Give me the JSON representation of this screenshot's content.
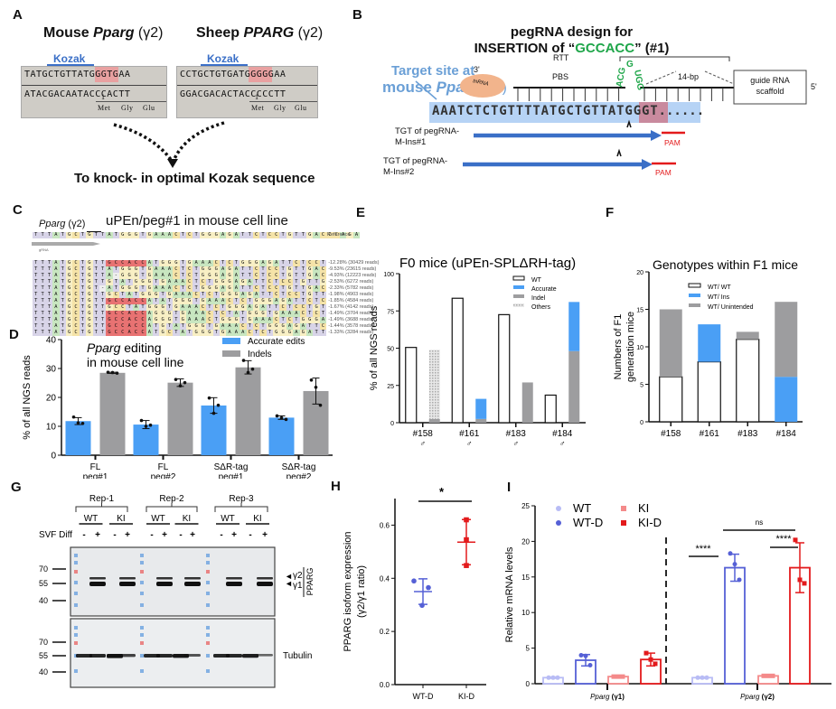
{
  "panels": {
    "A": {
      "label": "A",
      "mouse_title": "Mouse ",
      "mouse_gene": "Pparg",
      "mouse_iso": " (γ2)",
      "sheep_title": "Sheep  ",
      "sheep_gene": "PPARG",
      "sheep_iso": " (γ2)",
      "kozak": "Kozak",
      "mouse_top_pre": "TATGCTGTT",
      "mouse_top_atg": "ATG",
      "mouse_top_post": "GGTGAA",
      "mouse_bottom": "ATACGACAATACCCACTT",
      "sheep_top_pre": "CCTGCTGTG",
      "sheep_top_atg": "ATG",
      "sheep_top_post": "GGGGAA",
      "sheep_bottom": "GGACGACACTACCCCCTT",
      "aa_num": "1",
      "aa": [
        "Met",
        "Gly",
        "Glu"
      ],
      "caption": "To knock- in optimal Kozak sequence"
    },
    "B": {
      "label": "B",
      "title_line1": "pegRNA design for",
      "title_line2_pre": "INSERTION of “",
      "title_insert": "GCCACC",
      "title_line2_post": "” (#1)",
      "target_line1": "Target site at",
      "target_line2_pre": "mouse ",
      "target_gene": "Pparg",
      "target_iso": " (γ2)",
      "three_prime": "3'",
      "five_prime": "5'",
      "trna": "tnRNA",
      "pbs": "PBS",
      "rtt": "RTT",
      "insert_loop": "ACGGUGG",
      "bp": "14-bp",
      "scaffold_line1": "guide RNA",
      "scaffold_line2": "scaffold",
      "seq_pre": "AAATCTCTGTTTTATGCTGTT",
      "seq_atg": "ATG",
      "seq_post": "GGT",
      "seq_dots": "......",
      "tgt1_line1": "TGT of pegRNA-",
      "tgt1_line2": "M-Ins#1",
      "tgt2_line1": "TGT of pegRNA-",
      "tgt2_line2": "M-Ins#2",
      "pam": "PAM"
    },
    "C": {
      "label": "C",
      "gene": "Pparg",
      "iso": " (γ2)",
      "title": "uPEn/peg#1 in mouse cell line",
      "grna": "gRNA",
      "reference_label": "Reference",
      "reference": "TTTATGCTGTTATGGGTGAAACTCTGGGAGATTCTCCTGTTGACCCAGA",
      "rows": [
        {
          "seq": "TTTATGCTGTTGCCACCATGGGTGAAACTCTGGGAGATTCTCCTGTTGAC",
          "pct": "12.28%",
          "reads": "(30429 reads)"
        },
        {
          "seq": "TTTATGCTGTTATGGGTGAAACTCTGGGAGATTCTCCTGTTGACCCAGA",
          "pct": "9.53%",
          "reads": "(23615 reads)"
        },
        {
          "seq": "TTTATGCTGTTA-GGGTGAAACTCTGGGAGATTCTCCTGTTGACCCAGA",
          "pct": "4.93%",
          "reads": "(12223 reads)"
        },
        {
          "seq": "TTTATGCTGTTGTATGGGTGAAACTCTGGGAGATTCTCCTGTTGACCCAG",
          "pct": "2.53%",
          "reads": "(6272 reads)"
        },
        {
          "seq": "TTTATGCTGT-ATGGGTGAAACTCTGGGAGATTCTCCTGTTGACCCAGAG",
          "pct": "2.33%",
          "reads": "(5782 reads)"
        },
        {
          "seq": "TTTATGCTGTTGCTATGGGTGAAACTCTGGGAGATTCTCCTGTTGACCCA",
          "pct": "1.98%",
          "reads": "(4903 reads)"
        },
        {
          "seq": "TTTATGCTGTTGCCACCATATGGGTGAAACTCTGGGAGATTCTCCTGTTG",
          "pct": "1.85%",
          "reads": "(4584 reads)"
        },
        {
          "seq": "TTTATGCTGTTGCCTATGGGTGAAACTCTGGGAGATTCTCCTGTTGACCC",
          "pct": "1.67%",
          "reads": "(4142 reads)"
        },
        {
          "seq": "TTTATGCTGTTGCCACCAGGGTGAAACTCTATGGGTGAAACTCTGGGAG",
          "pct": "1.49%",
          "reads": "(3704 reads)"
        },
        {
          "seq": "TTTATGCTGTTGCCACCAGGGTGAAACTGGGTGAAACTCTGGGAGATTC",
          "pct": "1.49%",
          "reads": "(3688 reads)"
        },
        {
          "seq": "TTTATGCTGTTGCCACCATGTATGGGTGAAACTCTGGGAGATTCTCCTG",
          "pct": "1.44%",
          "reads": "(3578 reads)"
        },
        {
          "seq": "TTTATGCTGTTGCCACCATGCTATGGGTGAAACTCTGGGAGATTCTCCTG",
          "pct": "1.33%",
          "reads": "(3284 reads)"
        }
      ]
    },
    "G": {
      "label": "G",
      "reps": [
        "Rep-1",
        "Rep-2",
        "Rep-3"
      ],
      "groups": [
        "WT",
        "KI",
        "WT",
        "KI",
        "WT",
        "KI"
      ],
      "svf": "SVF Diff",
      "signs": [
        "-",
        "+",
        "-",
        "+",
        "-",
        "+",
        "-",
        "+",
        "-",
        "+",
        "-",
        "+"
      ],
      "mw_top": [
        "70",
        "55",
        "40"
      ],
      "mw_bottom": [
        "70",
        "55",
        "40"
      ],
      "gamma2": "γ2",
      "gamma1": "γ1",
      "pparg": "PPARG",
      "tubulin": "Tubulin"
    }
  },
  "chart_data": [
    {
      "id": "D",
      "type": "bar",
      "title_gene": "Pparg",
      "title_line1_rest": " editing",
      "title_line2": "in mouse cell line",
      "categories": [
        [
          "FL",
          "peg#1"
        ],
        [
          "FL",
          "peg#2"
        ],
        [
          "SΔR-tag",
          "peg#1"
        ],
        [
          "SΔR-tag",
          "peg#2"
        ]
      ],
      "series": [
        {
          "name": "Accurate edits",
          "color": "#4a9ff5",
          "values": [
            11.8,
            10.6,
            17.2,
            13.0
          ],
          "errors": [
            1.2,
            1.4,
            2.7,
            0.6
          ],
          "points": [
            [
              13.2,
              11.2,
              11.0
            ],
            [
              12.0,
              10.0,
              10.4
            ],
            [
              19.8,
              14.5,
              17.3
            ],
            [
              13.6,
              12.9,
              12.4
            ]
          ]
        },
        {
          "name": "Indels",
          "color": "#9d9d9f",
          "values": [
            28.5,
            25.1,
            30.4,
            22.2
          ],
          "errors": [
            0.2,
            1.3,
            2.3,
            4.5
          ],
          "points": [
            [
              28.7,
              28.6,
              28.4
            ],
            [
              26.2,
              24.0,
              25.1
            ],
            [
              32.8,
              28.6,
              29.8
            ],
            [
              26.0,
              23.5,
              17.3
            ]
          ]
        }
      ],
      "ylabel": "% of all NGS reads",
      "ylim": [
        0,
        40
      ],
      "yticks": [
        0,
        10,
        20,
        30,
        40
      ],
      "legend": "top-right"
    },
    {
      "id": "E",
      "type": "bar",
      "title": "F0 mice (uPEn-SPLΔRH-tag)",
      "categories": [
        "#158",
        "#161",
        "#183",
        "#184"
      ],
      "sex": "♂",
      "bars": [
        {
          "category": "#158",
          "WT": 50.5,
          "Accurate": 0,
          "Indel": 2.5,
          "Others": 46.5
        },
        {
          "category": "#161",
          "WT": 83.5,
          "Accurate": 13.5,
          "Indel": 2.5,
          "Others": 0
        },
        {
          "category": "#183",
          "WT": 72.5,
          "Accurate": 0,
          "Indel": 27,
          "Others": 0
        },
        {
          "category": "#184",
          "WT": 18.5,
          "Accurate": 33,
          "Indel": 48,
          "Others": 0
        }
      ],
      "legend_entries": [
        {
          "name": "WT",
          "color": "#ffffff"
        },
        {
          "name": "Accurate",
          "color": "#4a9ff5"
        },
        {
          "name": "Indel",
          "color": "#9d9d9f"
        },
        {
          "name": "Others",
          "color": "#cfcfcf"
        }
      ],
      "ylabel": "% of all NGS reads",
      "ylim": [
        0,
        100
      ],
      "yticks": [
        0,
        25,
        50,
        75,
        100
      ],
      "legend": "top-right"
    },
    {
      "id": "F",
      "type": "bar",
      "stacked": true,
      "title": "Genotypes within F1 mice",
      "categories": [
        "#158",
        "#161",
        "#183",
        "#184"
      ],
      "series": [
        {
          "name": "WT/ WT",
          "color": "#ffffff",
          "values": [
            6,
            8,
            11,
            0
          ]
        },
        {
          "name": "WT/ Ins",
          "color": "#4a9ff5",
          "values": [
            0,
            5,
            0,
            6
          ]
        },
        {
          "name": "WT/ Unintended",
          "color": "#9d9d9f",
          "values": [
            9,
            0,
            1,
            10
          ]
        }
      ],
      "ylabel_line1": "Numbers of F1",
      "ylabel_line2": "generation mice",
      "ylim": [
        0,
        20
      ],
      "yticks": [
        0,
        5,
        10,
        15,
        20
      ],
      "legend": "top-right"
    },
    {
      "id": "H",
      "type": "scatter",
      "categories": [
        "WT-D",
        "KI-D"
      ],
      "series": [
        {
          "name": "WT-D",
          "color": "#5560d6",
          "marker": "circle",
          "mean": 0.35,
          "sd": 0.048,
          "points": [
            0.39,
            0.365,
            0.298
          ]
        },
        {
          "name": "KI-D",
          "color": "#e31a1c",
          "marker": "square",
          "mean": 0.536,
          "sd": 0.085,
          "points": [
            0.62,
            0.545,
            0.448
          ]
        }
      ],
      "significance": "*",
      "ylabel_line1": "PPARG isoform expression",
      "ylabel_line2": "(γ2/γ1 ratio)",
      "ylim": [
        0,
        0.7
      ],
      "yticks": [
        0.0,
        0.2,
        0.4,
        0.6
      ]
    },
    {
      "id": "I",
      "type": "bar",
      "groups": [
        {
          "gene": "Pparg",
          "iso": " (γ1)"
        },
        {
          "gene": "Pparg",
          "iso": " (γ2)"
        }
      ],
      "series": [
        {
          "name": "WT",
          "color": "#b8bcf5",
          "marker": "circle",
          "values": [
            0.85,
            0.85
          ],
          "errors": [
            0.1,
            0.1
          ],
          "points": [
            [
              0.85,
              0.85,
              0.85
            ],
            [
              0.85,
              0.85,
              0.85
            ]
          ]
        },
        {
          "name": "WT-D",
          "color": "#5560d6",
          "marker": "circle",
          "values": [
            3.3,
            16.3
          ],
          "errors": [
            0.8,
            1.9
          ],
          "points": [
            [
              4.0,
              3.9,
              2.6
            ],
            [
              18.3,
              16.8,
              14.6
            ]
          ]
        },
        {
          "name": "KI",
          "color": "#f48a8a",
          "marker": "square",
          "values": [
            1.0,
            1.1
          ],
          "errors": [
            0.1,
            0.1
          ],
          "points": [
            [
              1.0,
              1.0,
              1.0
            ],
            [
              1.1,
              1.1,
              1.1
            ]
          ]
        },
        {
          "name": "KI-D",
          "color": "#e31a1c",
          "marker": "square",
          "values": [
            3.4,
            16.3
          ],
          "errors": [
            0.9,
            3.5
          ],
          "points": [
            [
              4.3,
              3.4,
              2.8
            ],
            [
              20.2,
              14.6,
              14.1
            ]
          ]
        }
      ],
      "significance": [
        {
          "label": "****",
          "between": [
            "WT",
            "WT-D"
          ],
          "group": 1
        },
        {
          "label": "****",
          "between": [
            "KI",
            "KI-D"
          ],
          "group": 1
        },
        {
          "label": "ns",
          "between": [
            "WT-D",
            "KI-D"
          ],
          "group": 1
        }
      ],
      "ylabel": "Relative mRNA levels",
      "ylim": [
        0,
        25
      ],
      "yticks": [
        0,
        5,
        10,
        15,
        20,
        25
      ],
      "legend": "top-left"
    }
  ]
}
